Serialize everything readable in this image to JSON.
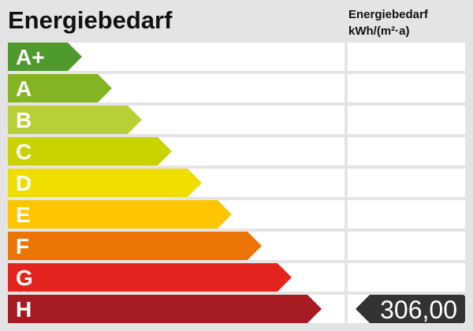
{
  "title": "Energiebedarf",
  "column_header": {
    "line1": "Energiebedarf",
    "line2": "kWh/(m²·a)"
  },
  "classes": [
    {
      "label": "A+",
      "color": "#4f9a2d"
    },
    {
      "label": "A",
      "color": "#84b424"
    },
    {
      "label": "B",
      "color": "#b8cf35"
    },
    {
      "label": "C",
      "color": "#cad300"
    },
    {
      "label": "D",
      "color": "#f0dd00"
    },
    {
      "label": "E",
      "color": "#fdc600"
    },
    {
      "label": "F",
      "color": "#ec7405"
    },
    {
      "label": "G",
      "color": "#e3241e"
    },
    {
      "label": "H",
      "color": "#a71c23"
    }
  ],
  "value": {
    "text": "306,00",
    "class": "H",
    "color": "#333333"
  }
}
